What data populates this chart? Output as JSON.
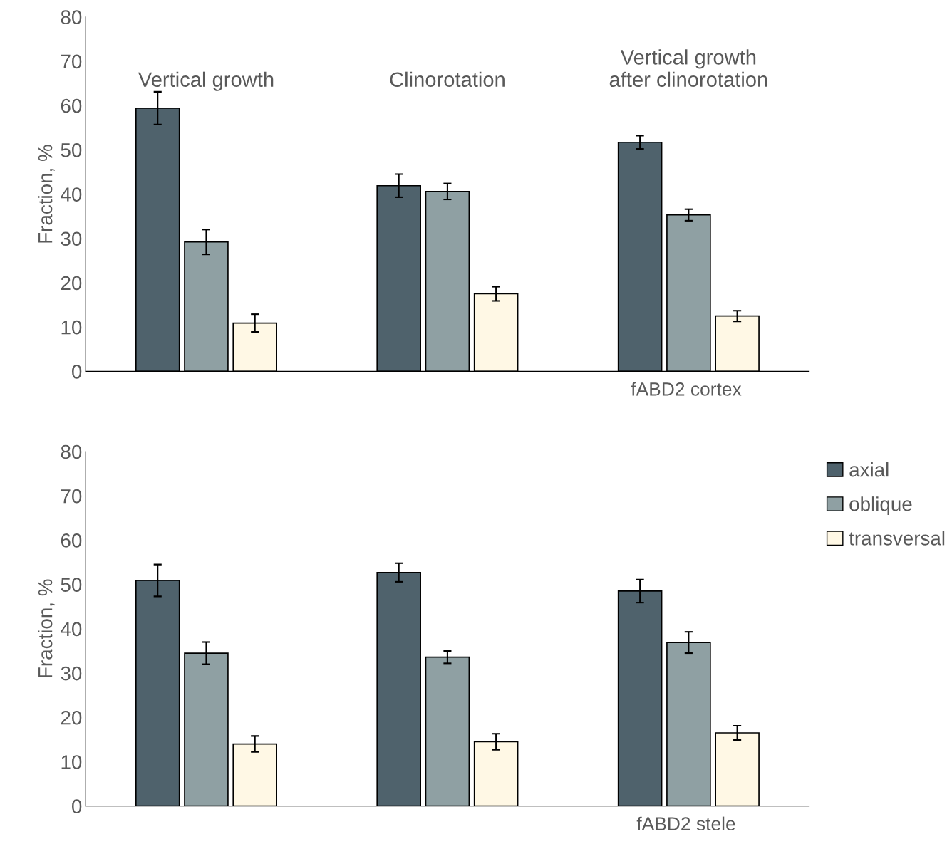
{
  "chart_data": [
    {
      "type": "bar",
      "categories": [
        "Vertical growth",
        "Clinorotation",
        "Vertical growth\nafter clinorotation"
      ],
      "xlabel": "fABD2 cortex",
      "ylabel": "Fraction, %",
      "ylim": [
        0,
        80
      ],
      "yticks": [
        0,
        10,
        20,
        30,
        40,
        50,
        60,
        70,
        80
      ],
      "grid": false,
      "series": [
        {
          "color": "#4f626c",
          "values": [
            59.4,
            41.9,
            51.7
          ],
          "errors": [
            3.7,
            2.6,
            1.5
          ]
        },
        {
          "color": "#8fa0a3",
          "values": [
            29.2,
            40.6,
            35.3
          ],
          "errors": [
            2.8,
            1.8,
            1.3
          ]
        },
        {
          "color": "#fff8e5",
          "values": [
            10.9,
            17.5,
            12.5
          ],
          "errors": [
            2.0,
            1.6,
            1.2
          ]
        }
      ]
    },
    {
      "type": "bar",
      "categories": [
        null,
        null,
        null
      ],
      "xlabel": "fABD2 stele",
      "ylabel": "Fraction, %",
      "ylim": [
        0,
        80
      ],
      "yticks": [
        0,
        10,
        20,
        30,
        40,
        50,
        60,
        70,
        80
      ],
      "grid": false,
      "legend": "top right",
      "series": [
        {
          "name": "axial",
          "color": "#4f626c",
          "values": [
            50.9,
            52.7,
            48.5
          ],
          "errors": [
            3.6,
            2.1,
            2.6
          ]
        },
        {
          "name": "oblique",
          "color": "#8fa0a3",
          "values": [
            34.5,
            33.6,
            36.9
          ],
          "errors": [
            2.5,
            1.4,
            2.4
          ]
        },
        {
          "name": "transversal",
          "color": "#fff8e5",
          "values": [
            14.0,
            14.5,
            16.5
          ],
          "errors": [
            1.8,
            1.8,
            1.6
          ]
        }
      ]
    }
  ]
}
